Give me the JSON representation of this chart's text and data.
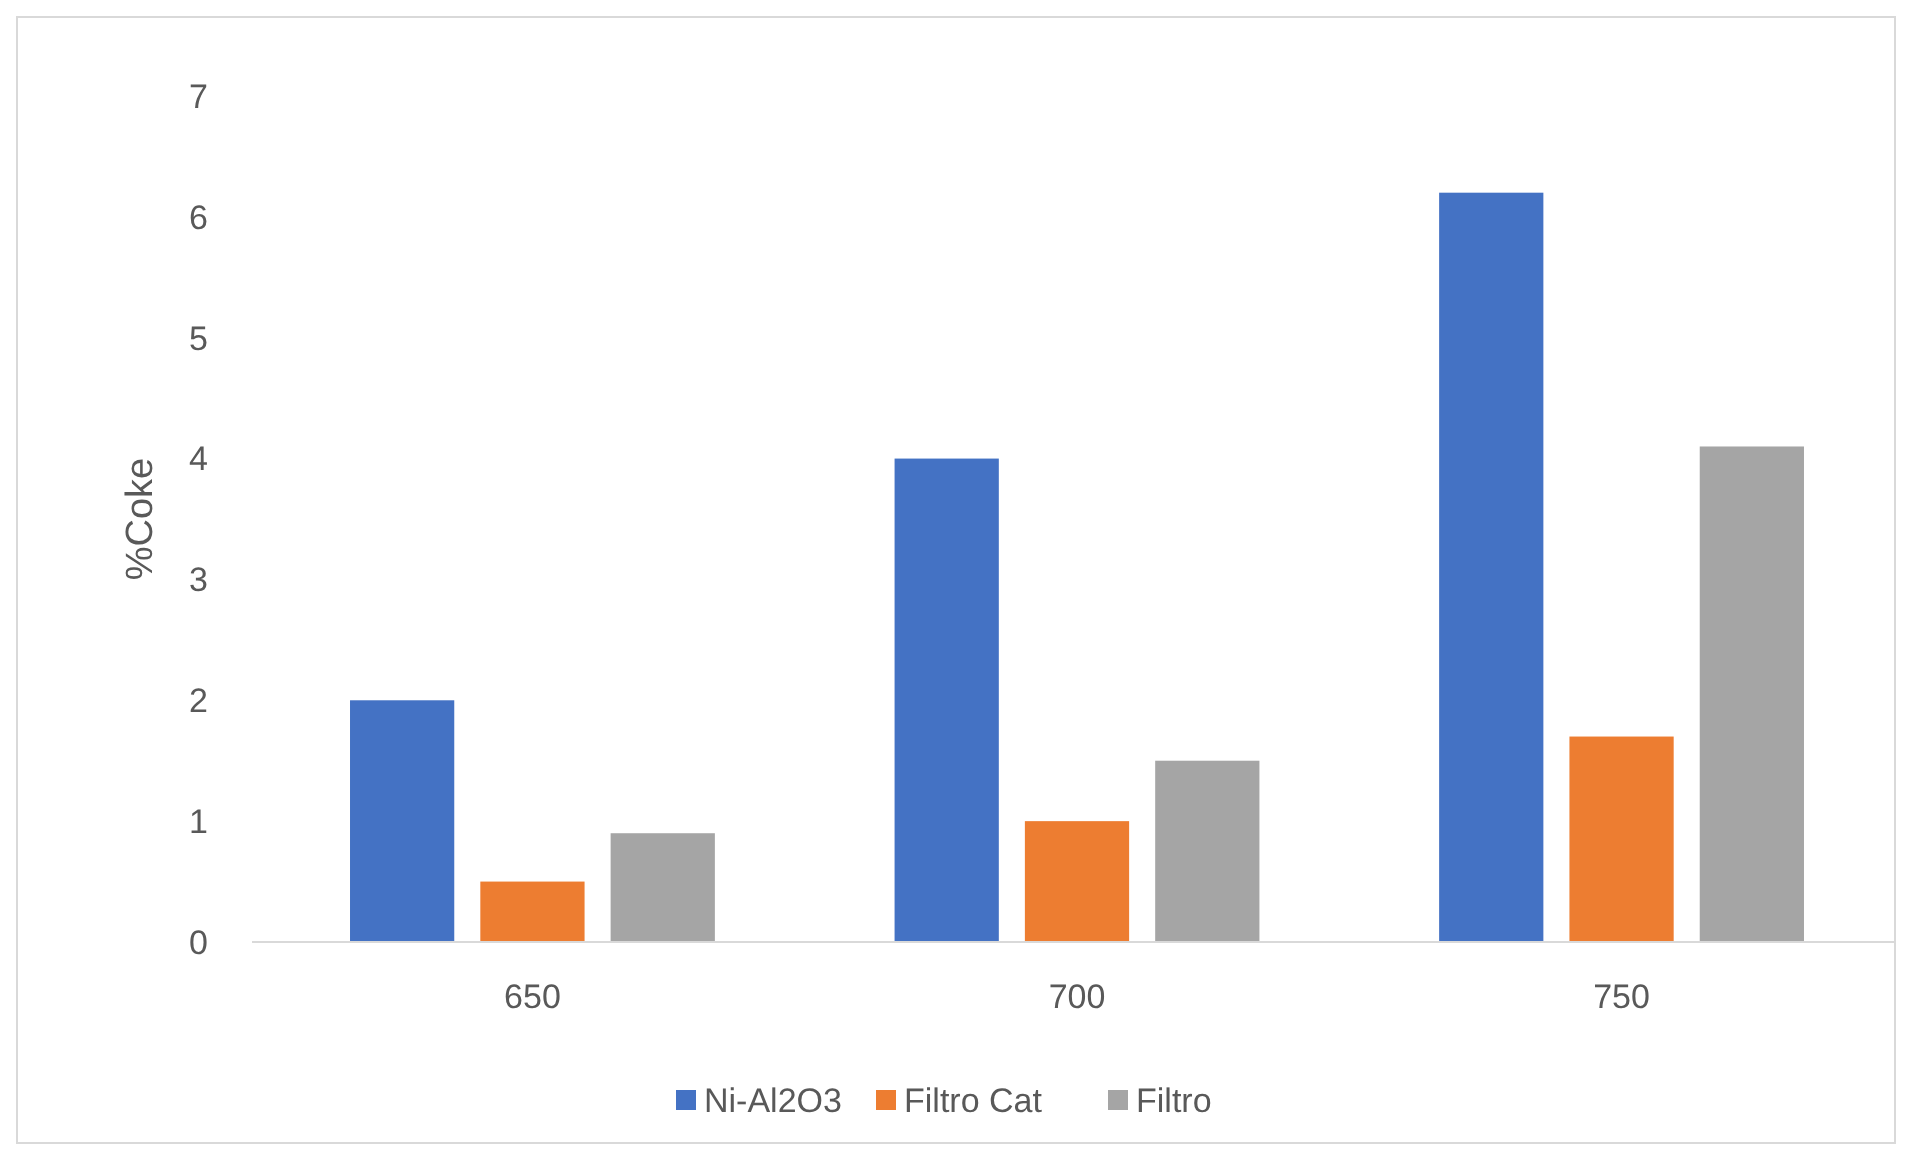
{
  "chart_data": {
    "type": "bar",
    "ylabel": "%Coke",
    "categories": [
      "650",
      "700",
      "750"
    ],
    "series": [
      {
        "name": "Ni-Al2O3",
        "color": "#4472c4",
        "values": [
          2,
          4,
          6.2
        ]
      },
      {
        "name": "Filtro Cat",
        "color": "#ed7d31",
        "values": [
          0.5,
          1,
          1.7
        ]
      },
      {
        "name": "Filtro",
        "color": "#a5a5a5",
        "values": [
          0.9,
          1.5,
          4.1
        ]
      }
    ],
    "ylim": [
      0,
      7
    ],
    "yticks": [
      0,
      1,
      2,
      3,
      4,
      5,
      6,
      7
    ],
    "grid": false,
    "legend": "bottom"
  }
}
